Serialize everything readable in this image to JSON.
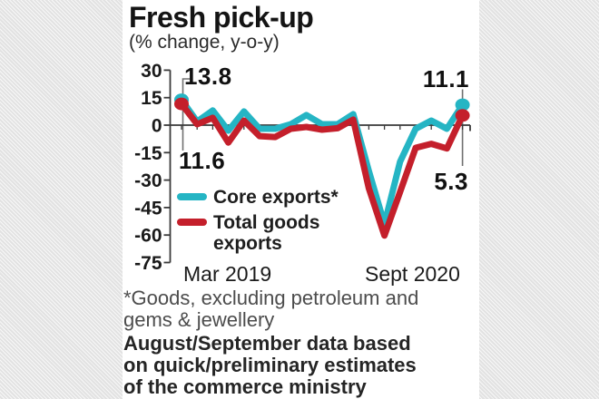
{
  "header": {
    "title": "Fresh pick-up",
    "subtitle": "(% change, y-o-y)"
  },
  "chart_data": {
    "type": "line",
    "title": "Fresh pick-up",
    "subtitle": "(% change, y-o-y)",
    "ylim": [
      -75,
      30
    ],
    "yticks": [
      30,
      15,
      0,
      -15,
      -30,
      -45,
      -60,
      -75
    ],
    "xtick_labels": [
      "Mar 2019",
      "Sept 2020"
    ],
    "x_range_note": "19 monthly points from Mar 2019 to Sept 2020",
    "grid": "zero-line only",
    "legend_position": "inside-left",
    "series": [
      {
        "name": "Core exports*",
        "color": "#25b5c4",
        "values": [
          13.8,
          2,
          8,
          -3,
          7.5,
          -2,
          -2,
          0.5,
          5.5,
          0.5,
          0.5,
          6,
          -25,
          -54,
          -20,
          -2,
          2.5,
          -2,
          11.1
        ]
      },
      {
        "name": "Total goods exports",
        "color": "#c41f2b",
        "values": [
          11.6,
          0.5,
          4,
          -9.5,
          2.5,
          -6,
          -6.5,
          -2,
          -1,
          -2.5,
          -1.7,
          3,
          -34.5,
          -60.3,
          -36.5,
          -12.4,
          -10.2,
          -12.7,
          5.3
        ]
      }
    ],
    "annotations": [
      {
        "label": "13.8",
        "series": "Core exports*",
        "point": "Mar 2019"
      },
      {
        "label": "11.6",
        "series": "Total goods exports",
        "point": "Mar 2019"
      },
      {
        "label": "11.1",
        "series": "Core exports*",
        "point": "Sept 2020"
      },
      {
        "label": "5.3",
        "series": "Total goods exports",
        "point": "Sept 2020"
      }
    ]
  },
  "annotations": {
    "start_core": "13.8",
    "start_total": "11.6",
    "end_core": "11.1",
    "end_total": "5.3"
  },
  "legend": {
    "items": [
      {
        "label": "Core exports*",
        "color": "#25b5c4"
      },
      {
        "label": "Total goods exports",
        "color": "#c41f2b"
      }
    ]
  },
  "axis": {
    "x_left": "Mar 2019",
    "x_right": "Sept 2020"
  },
  "footnotes": {
    "note1_lines": [
      "*Goods, excluding petroleum and",
      "gems & jewellery"
    ],
    "note2_lines": [
      "August/September data based",
      "on quick/preliminary estimates",
      "of the commerce ministry"
    ]
  },
  "colors": {
    "core_line": "#25b5c4",
    "total_line": "#c41f2b",
    "axis": "#3a3a3a",
    "connector": "#707070",
    "panel_bg": "#ffffff",
    "page_bg_hatch": "#e2e2e2"
  }
}
